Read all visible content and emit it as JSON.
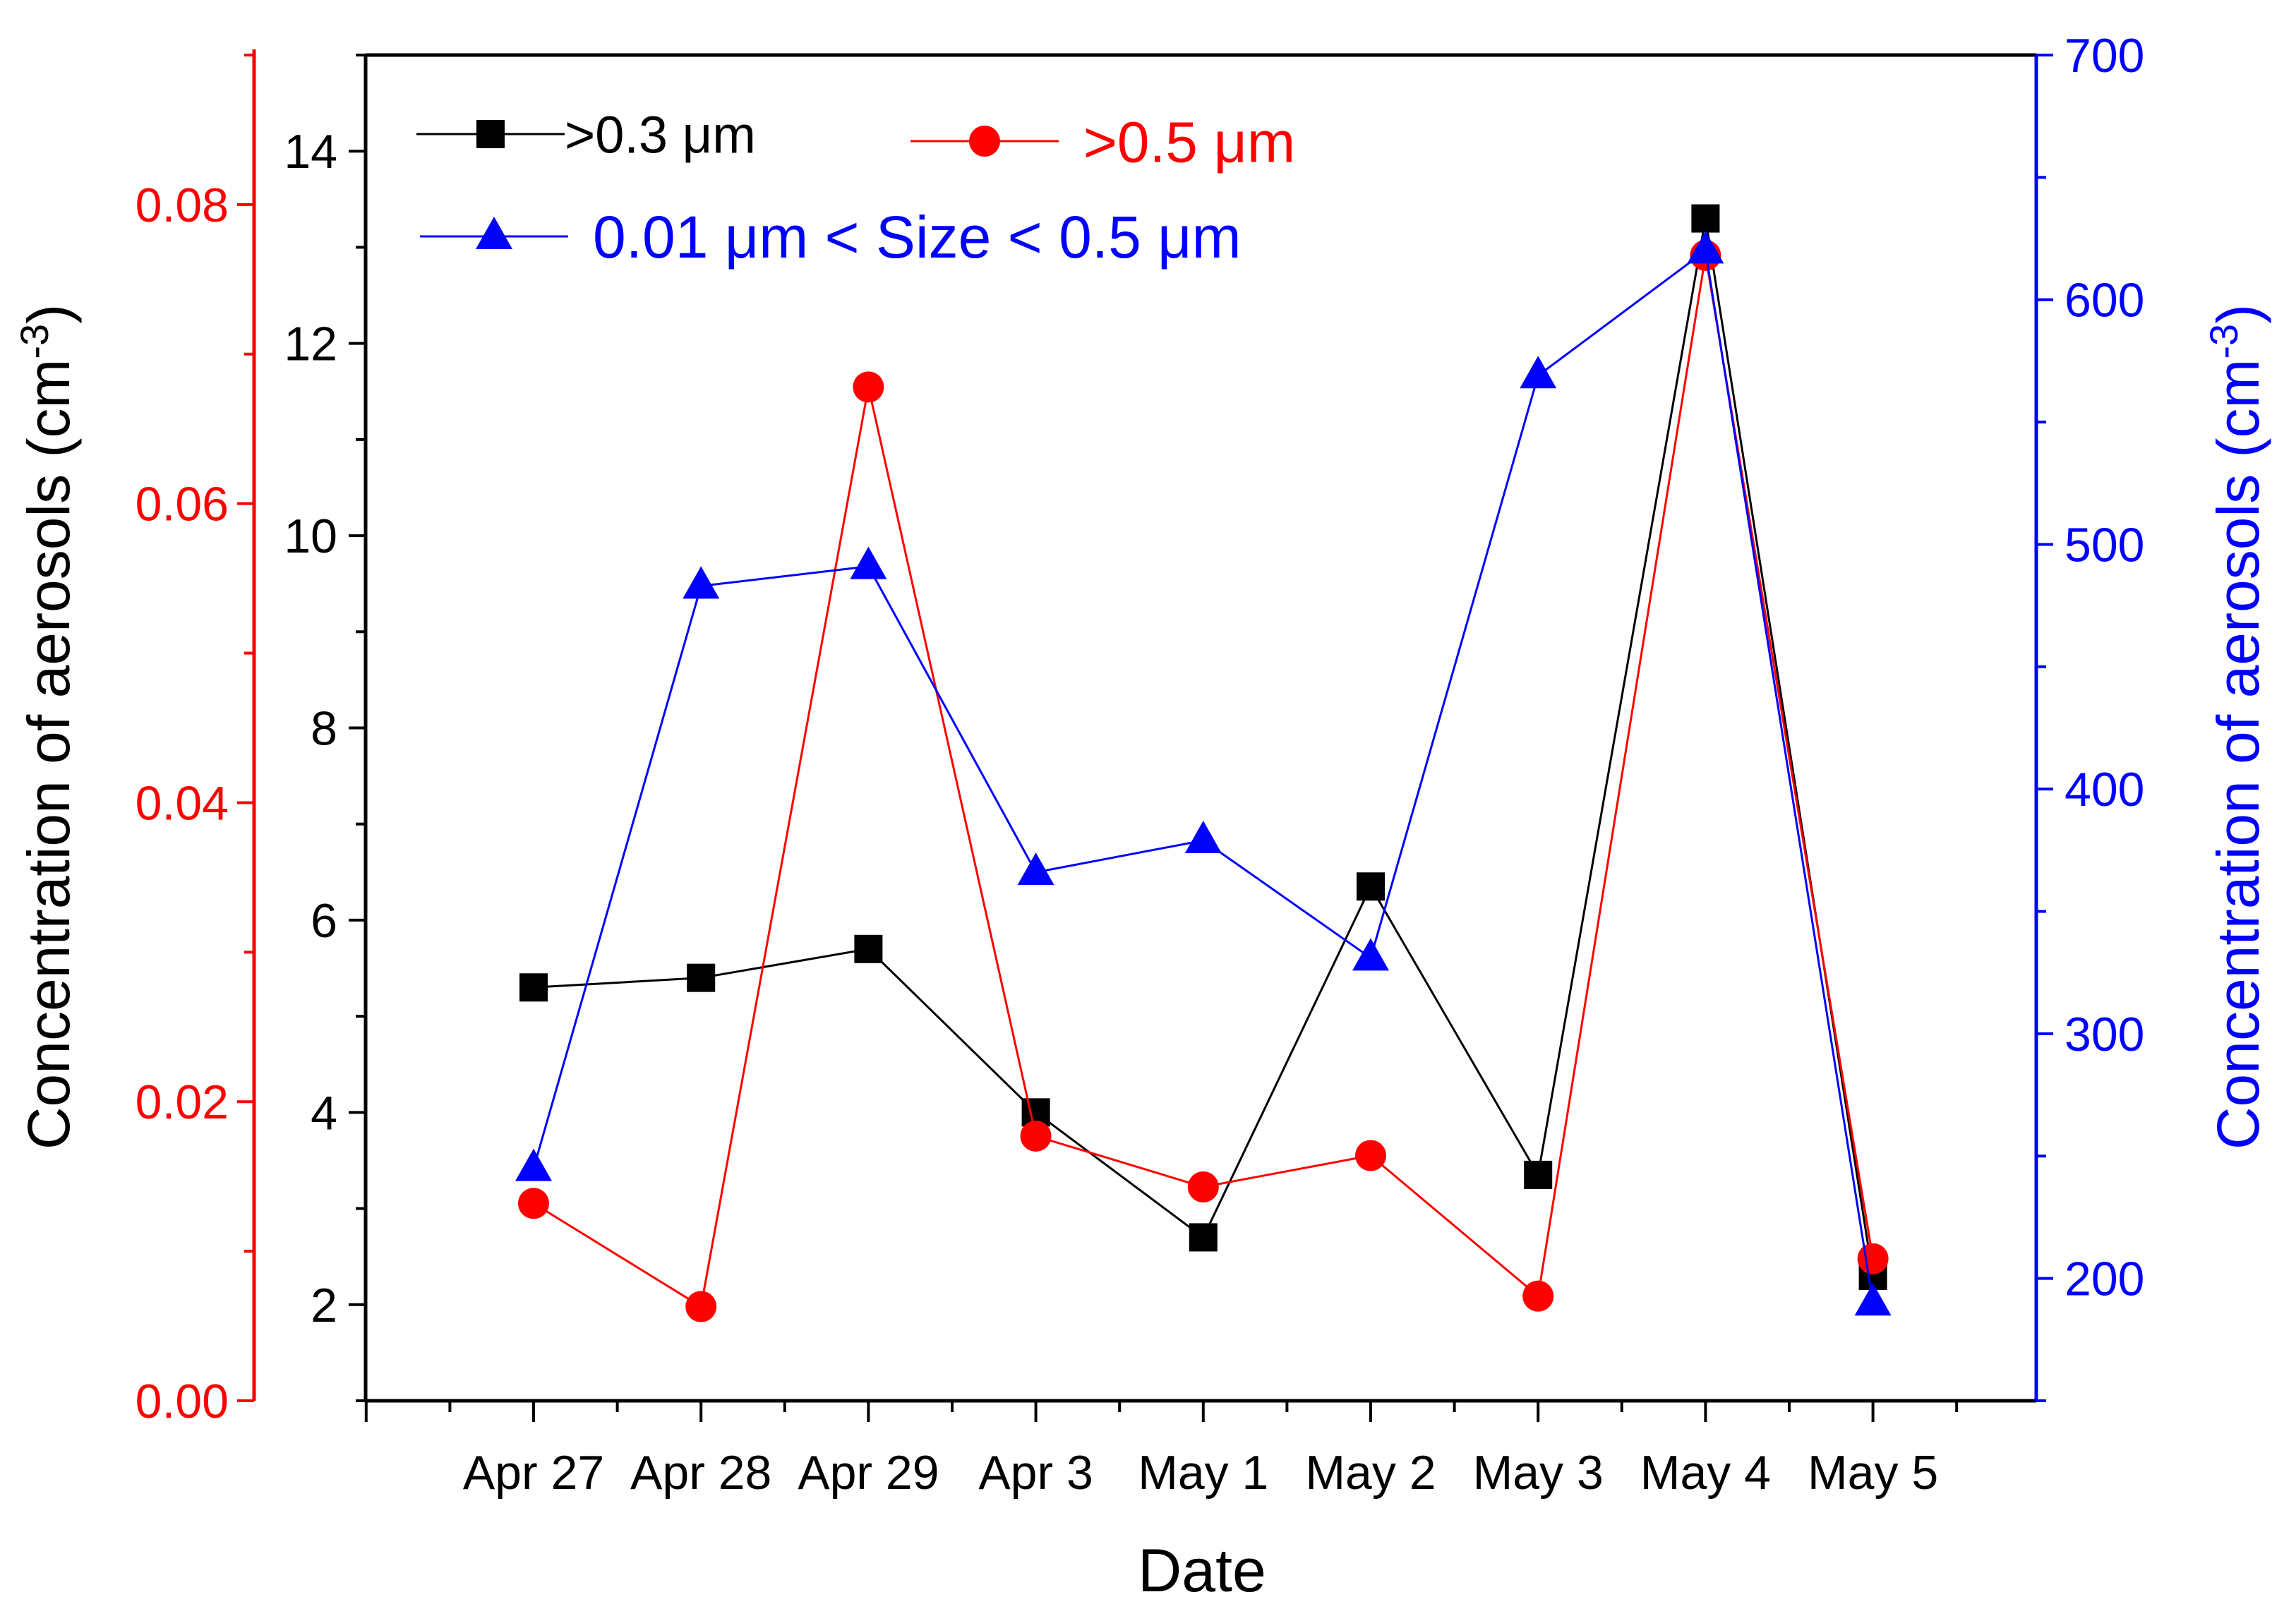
{
  "chart_data": {
    "type": "line",
    "categories": [
      "Apr 27",
      "Apr 28",
      "Apr 29",
      "Apr 3",
      "May 1",
      "May 2",
      "May 3",
      "May 4",
      "May 5"
    ],
    "xlabel": "Date",
    "y_axes": {
      "left_black": {
        "range": [
          1,
          15
        ],
        "major_ticks": [
          2,
          4,
          6,
          8,
          10,
          12,
          14
        ],
        "minor_step": 1,
        "color": "#000000"
      },
      "left_red": {
        "range": [
          0,
          0.09
        ],
        "major_ticks": [
          0.0,
          0.02,
          0.04,
          0.06,
          0.08
        ],
        "minor_step": 0.01,
        "tick_labels": [
          "0.00",
          "0.02",
          "0.04",
          "0.06",
          "0.08"
        ],
        "color": "#ff0000"
      },
      "right_blue": {
        "range": [
          150,
          700
        ],
        "major_ticks": [
          200,
          300,
          400,
          500,
          600,
          700
        ],
        "minor_step": 50,
        "color": "#0000ff"
      }
    },
    "ylabel_left": "Concentration of aerosols (cm",
    "ylabel_right": "Concentration of aerosols (cm",
    "ylabel_superscript": "-3",
    "ylabel_close": ")",
    "series": [
      {
        "name": ">0.3 μm",
        "axis": "left_black",
        "marker": "square",
        "color": "#000000",
        "values": [
          5.3,
          5.4,
          5.7,
          4.0,
          2.7,
          6.35,
          3.35,
          13.3,
          2.3
        ]
      },
      {
        "name": ">0.5 μm",
        "axis": "left_red",
        "marker": "circle",
        "color": "#ff0000",
        "values": [
          0.0132,
          0.0063,
          0.0678,
          0.0177,
          0.0143,
          0.0164,
          0.007,
          0.0766,
          0.0095
        ]
      },
      {
        "name": "0.01 μm < Size < 0.5 μm",
        "axis": "right_blue",
        "marker": "triangle",
        "color": "#0000ff",
        "values": [
          245,
          483,
          491,
          366,
          379,
          331,
          569,
          620,
          190
        ]
      }
    ],
    "legend_position": "top-left"
  }
}
